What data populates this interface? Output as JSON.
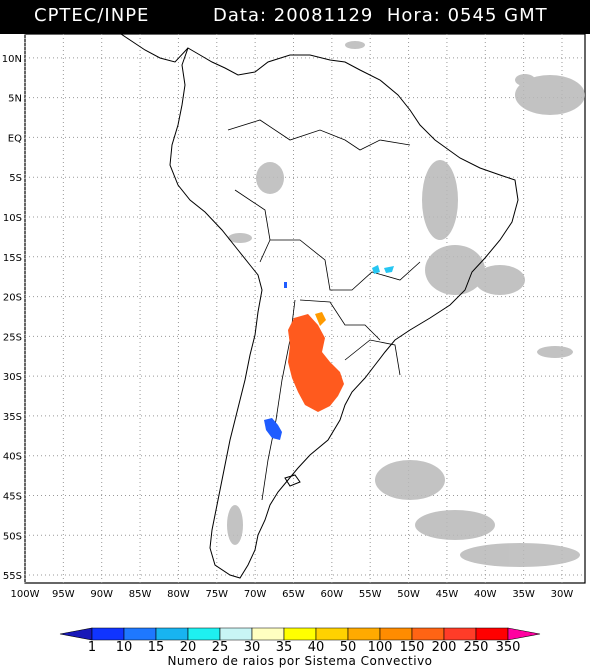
{
  "header": {
    "org": "CPTEC/INPE",
    "datetime": "Data: 20081129  Hora: 0545 GMT"
  },
  "map": {
    "lat_labels": [
      "10N",
      "5N",
      "EQ",
      "5S",
      "10S",
      "15S",
      "20S",
      "25S",
      "30S",
      "35S",
      "40S",
      "45S",
      "50S",
      "55S"
    ],
    "lon_labels": [
      "100W",
      "95W",
      "90W",
      "85W",
      "80W",
      "75W",
      "70W",
      "65W",
      "60W",
      "55W",
      "50W",
      "45W",
      "40W",
      "35W",
      "30W"
    ],
    "extent": {
      "west": -100,
      "east": -27,
      "north": 13,
      "south": -56
    },
    "grid": true,
    "colors": {
      "coast": "#000000",
      "grid": "#999999",
      "cloud": "#b8b8b8",
      "lightning_main": "#ff5a1e",
      "lightning_orange": "#ff9a00",
      "lightning_blue": "#1f5cff",
      "lightning_cyan": "#26c6f2"
    }
  },
  "legend": {
    "values": [
      "1",
      "10",
      "15",
      "20",
      "25",
      "30",
      "35",
      "40",
      "50",
      "100",
      "150",
      "200",
      "250",
      "350"
    ],
    "colors": [
      "#1818b8",
      "#1034ff",
      "#1e78ff",
      "#18b4f0",
      "#1ef0f0",
      "#c8f5f5",
      "#ffffc0",
      "#ffff00",
      "#ffd200",
      "#ffaa00",
      "#ff8c00",
      "#ff6414",
      "#ff3c28",
      "#ff0000",
      "#ff00a0"
    ],
    "title": "Numero de raios por Sistema Convectivo"
  }
}
